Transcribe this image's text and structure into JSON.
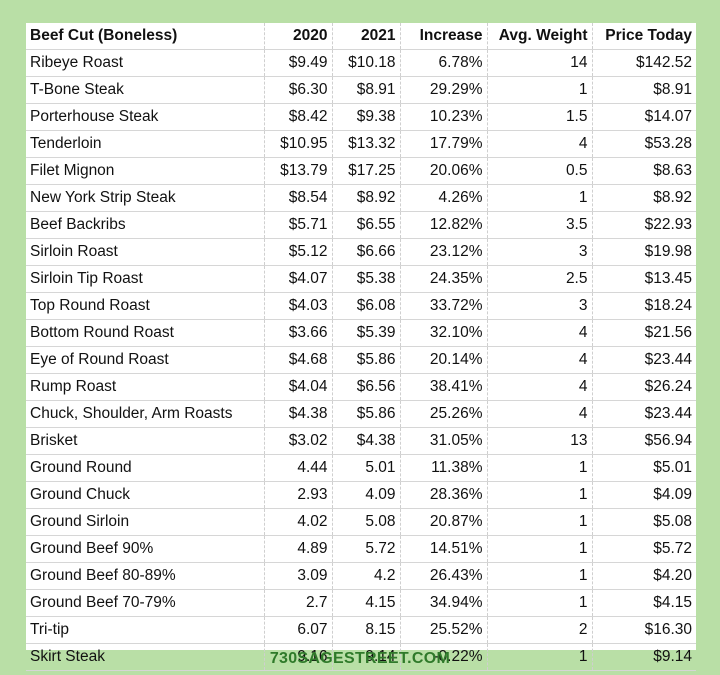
{
  "table": {
    "headers": [
      "Beef Cut (Boneless)",
      "2020",
      "2021",
      "Increase",
      "Avg. Weight",
      "Price Today"
    ],
    "rows": [
      [
        "Ribeye Roast",
        "$9.49",
        "$10.18",
        "6.78%",
        "14",
        "$142.52"
      ],
      [
        "T-Bone Steak",
        "$6.30",
        "$8.91",
        "29.29%",
        "1",
        "$8.91"
      ],
      [
        "Porterhouse Steak",
        "$8.42",
        "$9.38",
        "10.23%",
        "1.5",
        "$14.07"
      ],
      [
        "Tenderloin",
        "$10.95",
        "$13.32",
        "17.79%",
        "4",
        "$53.28"
      ],
      [
        "Filet Mignon",
        "$13.79",
        "$17.25",
        "20.06%",
        "0.5",
        "$8.63"
      ],
      [
        "New York Strip Steak",
        "$8.54",
        "$8.92",
        "4.26%",
        "1",
        "$8.92"
      ],
      [
        "Beef Backribs",
        "$5.71",
        "$6.55",
        "12.82%",
        "3.5",
        "$22.93"
      ],
      [
        "Sirloin Roast",
        "$5.12",
        "$6.66",
        "23.12%",
        "3",
        "$19.98"
      ],
      [
        "Sirloin Tip Roast",
        "$4.07",
        "$5.38",
        "24.35%",
        "2.5",
        "$13.45"
      ],
      [
        "Top Round Roast",
        "$4.03",
        "$6.08",
        "33.72%",
        "3",
        "$18.24"
      ],
      [
        "Bottom Round Roast",
        "$3.66",
        "$5.39",
        "32.10%",
        "4",
        "$21.56"
      ],
      [
        "Eye of Round Roast",
        "$4.68",
        "$5.86",
        "20.14%",
        "4",
        "$23.44"
      ],
      [
        "Rump Roast",
        "$4.04",
        "$6.56",
        "38.41%",
        "4",
        "$26.24"
      ],
      [
        "Chuck, Shoulder, Arm Roasts",
        "$4.38",
        "$5.86",
        "25.26%",
        "4",
        "$23.44"
      ],
      [
        "Brisket",
        "$3.02",
        "$4.38",
        "31.05%",
        "13",
        "$56.94"
      ],
      [
        "Ground Round",
        "4.44",
        "5.01",
        "11.38%",
        "1",
        "$5.01"
      ],
      [
        "Ground Chuck",
        "2.93",
        "4.09",
        "28.36%",
        "1",
        "$4.09"
      ],
      [
        "Ground Sirloin",
        "4.02",
        "5.08",
        "20.87%",
        "1",
        "$5.08"
      ],
      [
        "Ground Beef 90%",
        "4.89",
        "5.72",
        "14.51%",
        "1",
        "$5.72"
      ],
      [
        "Ground Beef 80-89%",
        "3.09",
        "4.2",
        "26.43%",
        "1",
        "$4.20"
      ],
      [
        "Ground Beef 70-79%",
        "2.7",
        "4.15",
        "34.94%",
        "1",
        "$4.15"
      ],
      [
        "Tri-tip",
        "6.07",
        "8.15",
        "25.52%",
        "2",
        "$16.30"
      ],
      [
        "Skirt Steak",
        "9.16",
        "9.14",
        "-0.22%",
        "1",
        "$9.14"
      ]
    ]
  },
  "footer": {
    "site": "730SAGESTREET.COM"
  },
  "colors": {
    "background": "#b9dfa6",
    "footer_text": "#2f7a2a"
  }
}
